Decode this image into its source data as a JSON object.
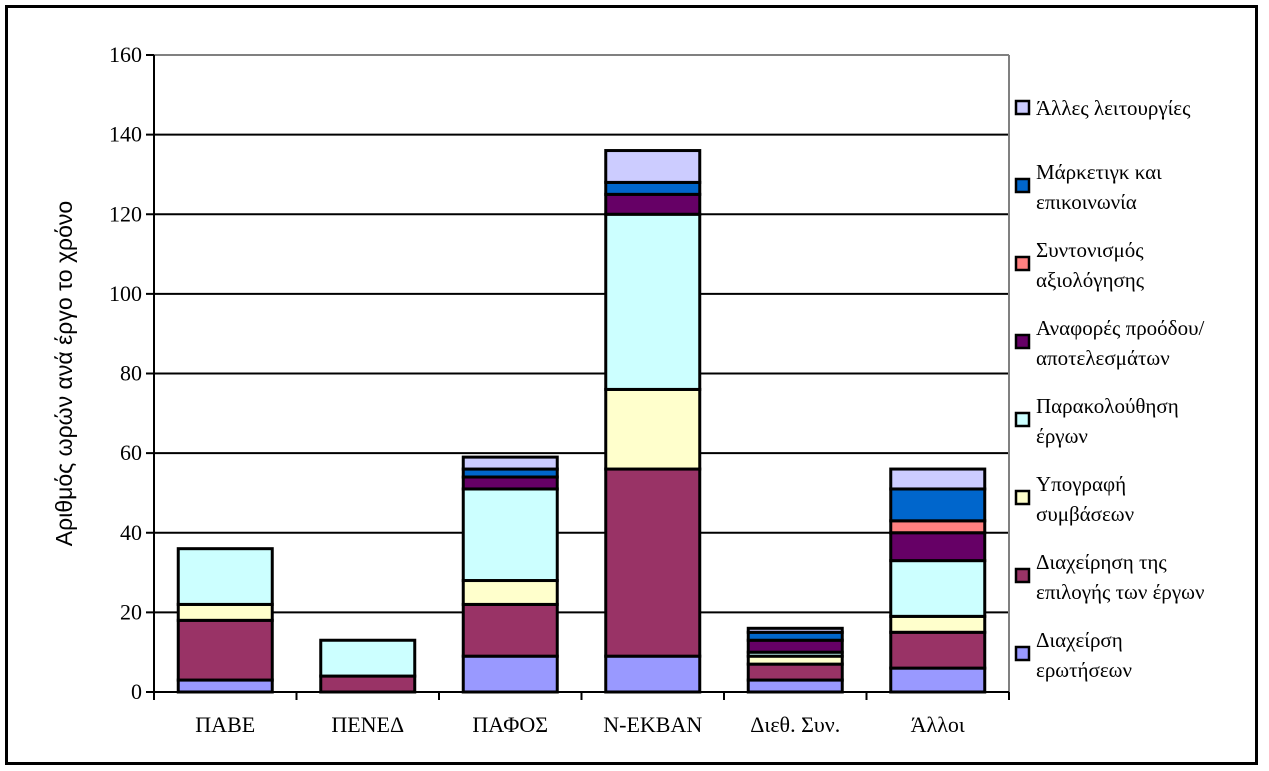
{
  "chart_data": {
    "type": "bar",
    "stacked": true,
    "title": "",
    "xlabel": "",
    "ylabel": "Αριθμός ωρών ανά έργο το χρόνο",
    "ylim": [
      0,
      160
    ],
    "yticks": [
      0,
      20,
      40,
      60,
      80,
      100,
      120,
      140,
      160
    ],
    "grid": true,
    "legend_position": "right",
    "categories": [
      "ΠΑΒΕ",
      "ΠΕΝΕΔ",
      "ΠΑΦΟΣ",
      "Ν-ΕΚΒΑΝ",
      "Διεθ. Συν.",
      "Άλλοι"
    ],
    "series": [
      {
        "name": "Διαχείρση ερωτήσεων",
        "color": "#9999ff",
        "values": [
          3,
          0,
          9,
          9,
          3,
          6
        ]
      },
      {
        "name": "Διαχείρηση της επιλογής των έργων",
        "color": "#993366",
        "values": [
          15,
          4,
          13,
          47,
          4,
          9
        ]
      },
      {
        "name": "Υπογραφή συμβάσεων",
        "color": "#ffffcc",
        "values": [
          4,
          0,
          6,
          20,
          2,
          4
        ]
      },
      {
        "name": "Παρακολούθηση έργων",
        "color": "#ccffff",
        "values": [
          14,
          9,
          23,
          44,
          1,
          14
        ]
      },
      {
        "name": "Αναφορές προόδου/ αποτελεσμάτων",
        "color": "#660066",
        "values": [
          0,
          0,
          3,
          5,
          3,
          7
        ]
      },
      {
        "name": "Συντονισμός αξιολόγησης",
        "color": "#ff8080",
        "values": [
          0,
          0,
          0,
          0,
          0,
          3
        ]
      },
      {
        "name": "Μάρκετιγκ και επικοινωνία",
        "color": "#0066cc",
        "values": [
          0,
          0,
          2,
          3,
          2,
          8
        ]
      },
      {
        "name": "Άλλες λειτουργίες",
        "color": "#ccccff",
        "values": [
          0,
          0,
          3,
          8,
          1,
          5
        ]
      }
    ],
    "legend_order": [
      7,
      6,
      5,
      4,
      3,
      2,
      1,
      0
    ],
    "legend_lines": [
      [
        "Άλλες λειτουργίες"
      ],
      [
        "Μάρκετιγκ και",
        "επικοινωνία"
      ],
      [
        "Συντονισμός",
        "αξιολόγησης"
      ],
      [
        "Αναφορές προόδου/",
        "αποτελεσμάτων"
      ],
      [
        "Παρακολούθηση",
        "έργων"
      ],
      [
        "Υπογραφή",
        "συμβάσεων"
      ],
      [
        "Διαχείρηση της",
        "επιλογής των έργων"
      ],
      [
        "Διαχείρση",
        "ερωτήσεων"
      ]
    ]
  }
}
